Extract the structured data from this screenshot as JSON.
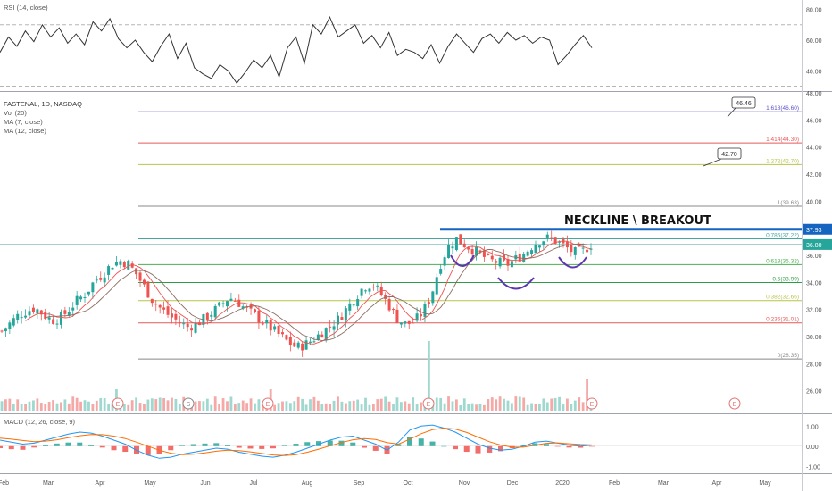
{
  "chart_data": {
    "type": "candlestick",
    "symbol_header": "FASTENAL, 1D, NASDAQ",
    "indicator_labels": [
      "Vol (20)",
      "MA (7, close)",
      "MA (12, close)"
    ],
    "rsi": {
      "label": "RSI (14, close)",
      "ticks": [
        "80.00",
        "60.00",
        "40.00"
      ],
      "overbought": 70,
      "oversold": 30,
      "ylim": [
        28,
        85
      ],
      "values": [
        52,
        62,
        56,
        66,
        59,
        70,
        62,
        68,
        58,
        64,
        57,
        72,
        66,
        74,
        61,
        55,
        60,
        52,
        46,
        56,
        64,
        48,
        58,
        42,
        38,
        35,
        44,
        40,
        32,
        39,
        47,
        42,
        50,
        36,
        55,
        62,
        45,
        70,
        64,
        75,
        62,
        66,
        70,
        58,
        63,
        55,
        65,
        50,
        54,
        52,
        48,
        57,
        45,
        56,
        64,
        58,
        52,
        61,
        64,
        58,
        65,
        60,
        63,
        58,
        62,
        60,
        44,
        50,
        57,
        63,
        55
      ]
    },
    "price": {
      "ticks": [
        "48.00",
        "46.00",
        "44.00",
        "42.00",
        "40.00",
        "38.00",
        "36.00",
        "34.00",
        "32.00",
        "30.00",
        "28.00",
        "26.00"
      ],
      "ylim": [
        24.4,
        48.0
      ],
      "last_price_label": "36.80",
      "breakout_label": "37.93",
      "annotation": "NECKLINE \\ BREAKOUT",
      "target_callouts": [
        "46.46",
        "42.70"
      ],
      "close_series": [
        30.4,
        31.0,
        31.6,
        31.9,
        32.1,
        31.6,
        31.2,
        31.4,
        32.0,
        32.7,
        33.2,
        34.1,
        34.6,
        35.3,
        35.6,
        35.4,
        34.6,
        33.6,
        32.6,
        32.0,
        31.5,
        31.1,
        30.7,
        30.9,
        31.3,
        31.8,
        32.3,
        32.9,
        32.6,
        32.0,
        31.6,
        31.1,
        30.6,
        30.1,
        29.6,
        29.2,
        29.4,
        29.8,
        30.3,
        30.8,
        31.3,
        32.1,
        32.9,
        33.7,
        33.9,
        33.2,
        32.3,
        31.3,
        30.9,
        31.1,
        31.8,
        33.0,
        35.2,
        36.6,
        37.2,
        36.8,
        36.4,
        36.0,
        35.6,
        35.5,
        35.3,
        35.7,
        36.1,
        36.7,
        37.1,
        37.3,
        37.0,
        36.6,
        36.2,
        36.3,
        36.8
      ]
    },
    "fibonacci_levels": [
      {
        "label": "1.618(46.60)",
        "value": 46.6,
        "color": "#5b52c7"
      },
      {
        "label": "1.414(44.30)",
        "value": 44.3,
        "color": "#e55a5a"
      },
      {
        "label": "1.272(42.70)",
        "value": 42.7,
        "color": "#b9c44a"
      },
      {
        "label": "1(39.63)",
        "value": 39.63,
        "color": "#888888"
      },
      {
        "label": "0.786(37.22)",
        "value": 37.22,
        "color": "#46a6a0"
      },
      {
        "label": "0.618(35.32)",
        "value": 35.32,
        "color": "#4caf50"
      },
      {
        "label": "0.5(33.99)",
        "value": 33.99,
        "color": "#2e9c45"
      },
      {
        "label": "0.382(32.66)",
        "value": 32.66,
        "color": "#b9c44a"
      },
      {
        "label": "0.236(31.01)",
        "value": 31.01,
        "color": "#e55a5a"
      },
      {
        "label": "0(28.35)",
        "value": 28.35,
        "color": "#888888"
      }
    ],
    "macd": {
      "label": "MACD (12, 26, close, 9)",
      "ticks": [
        "1.00",
        "0.00",
        "-1.00"
      ],
      "ylim": [
        -1.3,
        1.5
      ],
      "macd_line": [
        0.3,
        0.2,
        0.1,
        0.15,
        0.3,
        0.45,
        0.6,
        0.7,
        0.65,
        0.5,
        0.3,
        0.1,
        -0.2,
        -0.45,
        -0.6,
        -0.55,
        -0.4,
        -0.3,
        -0.2,
        -0.1,
        -0.15,
        -0.3,
        -0.4,
        -0.5,
        -0.55,
        -0.45,
        -0.3,
        -0.1,
        0.1,
        0.3,
        0.45,
        0.5,
        0.3,
        0.1,
        -0.2,
        0.2,
        0.8,
        1.0,
        1.05,
        0.9,
        0.7,
        0.4,
        0.1,
        -0.1,
        -0.2,
        -0.15,
        0.0,
        0.2,
        0.25,
        0.15,
        0.05,
        0.0,
        0.05
      ],
      "signal_line": [
        0.4,
        0.35,
        0.28,
        0.22,
        0.25,
        0.32,
        0.42,
        0.52,
        0.58,
        0.57,
        0.5,
        0.38,
        0.2,
        0.0,
        -0.2,
        -0.35,
        -0.42,
        -0.4,
        -0.33,
        -0.25,
        -0.2,
        -0.22,
        -0.28,
        -0.36,
        -0.44,
        -0.47,
        -0.42,
        -0.3,
        -0.15,
        0.02,
        0.18,
        0.32,
        0.38,
        0.33,
        0.18,
        0.1,
        0.35,
        0.62,
        0.82,
        0.9,
        0.85,
        0.68,
        0.45,
        0.22,
        0.05,
        -0.05,
        -0.05,
        0.05,
        0.14,
        0.16,
        0.12,
        0.08,
        0.06
      ]
    },
    "x_ticks": [
      "Feb",
      "Mar",
      "Apr",
      "May",
      "Jun",
      "Jul",
      "Aug",
      "Sep",
      "Oct",
      "Nov",
      "Dec",
      "2020",
      "Feb",
      "Mar",
      "Apr",
      "May"
    ],
    "earnings_marker": "E",
    "dividend_marker": "S"
  }
}
